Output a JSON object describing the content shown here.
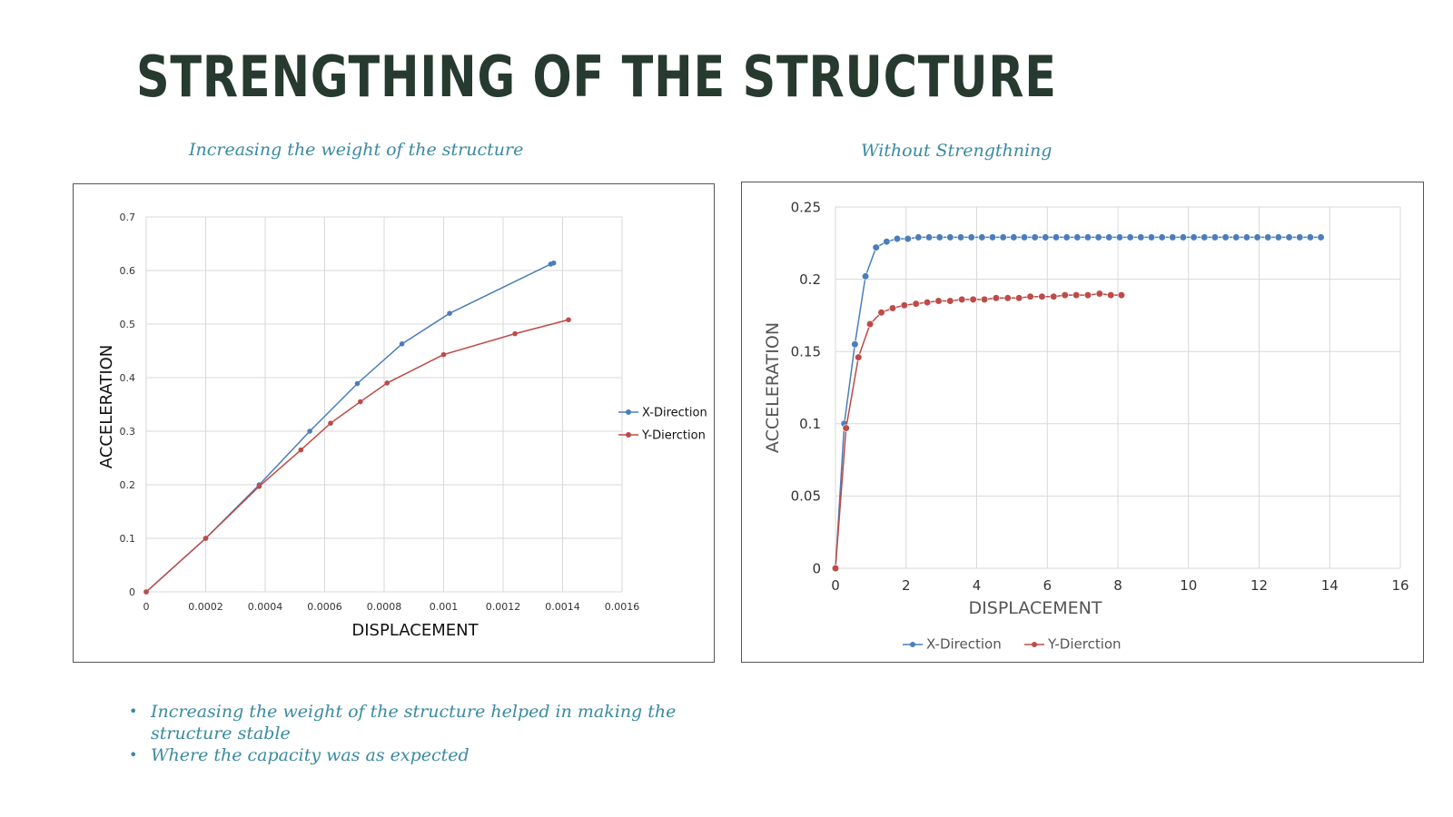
{
  "title": "STRENGTHING OF THE STRUCTURE",
  "captions": {
    "left": "Increasing the weight of the structure",
    "right": "Without Strengthning"
  },
  "bullets": [
    "Increasing the weight of the structure  helped in making the structure stable",
    "Where the capacity was as expected"
  ],
  "chart_data": [
    {
      "type": "line",
      "xlabel": "DISPLACEMENT",
      "ylabel": "ACCELERATION",
      "xlim": [
        0,
        0.0016
      ],
      "ylim": [
        0,
        0.7
      ],
      "x_ticks": [
        "0",
        "0.0002",
        "0.0004",
        "0.0006",
        "0.0008",
        "0.001",
        "0.0012",
        "0.0014",
        "0.0016"
      ],
      "y_ticks": [
        "0",
        "0.1",
        "0.2",
        "0.3",
        "0.4",
        "0.5",
        "0.6",
        "0.7"
      ],
      "grid": true,
      "legend": "right",
      "series": [
        {
          "name": "X-Direction",
          "color": "#4a7ebb",
          "points": [
            [
              0,
              0
            ],
            [
              0.0002,
              0.1
            ],
            [
              0.00038,
              0.2
            ],
            [
              0.00055,
              0.3
            ],
            [
              0.00071,
              0.389
            ],
            [
              0.00086,
              0.463
            ],
            [
              0.00102,
              0.52
            ],
            [
              0.00136,
              0.612
            ],
            [
              0.00137,
              0.614
            ]
          ]
        },
        {
          "name": "Y-Dierction",
          "color": "#be4b48",
          "points": [
            [
              0,
              0
            ],
            [
              0.0002,
              0.1
            ],
            [
              0.00038,
              0.197
            ],
            [
              0.00052,
              0.265
            ],
            [
              0.00062,
              0.315
            ],
            [
              0.00072,
              0.355
            ],
            [
              0.00081,
              0.39
            ],
            [
              0.001,
              0.443
            ],
            [
              0.00124,
              0.482
            ],
            [
              0.00142,
              0.508
            ]
          ]
        }
      ]
    },
    {
      "type": "line",
      "xlabel": "DISPLACEMENT",
      "ylabel": "ACCELERATION",
      "xlim": [
        0,
        16
      ],
      "ylim": [
        0,
        0.25
      ],
      "x_ticks": [
        "0",
        "2",
        "4",
        "6",
        "8",
        "10",
        "12",
        "14",
        "16"
      ],
      "y_ticks": [
        "0",
        "0.05",
        "0.1",
        "0.15",
        "0.2",
        "0.25"
      ],
      "grid": true,
      "legend": "bottom",
      "series": [
        {
          "name": "X-Direction",
          "color": "#4a7ebb",
          "points": [
            [
              0,
              0
            ],
            [
              0.25,
              0.1
            ],
            [
              0.55,
              0.155
            ],
            [
              0.85,
              0.202
            ],
            [
              1.15,
              0.222
            ],
            [
              1.45,
              0.226
            ],
            [
              1.75,
              0.228
            ],
            [
              2.05,
              0.228
            ],
            [
              2.35,
              0.229
            ],
            [
              2.65,
              0.229
            ],
            [
              2.95,
              0.229
            ],
            [
              3.25,
              0.229
            ],
            [
              3.55,
              0.229
            ],
            [
              3.85,
              0.229
            ],
            [
              4.15,
              0.229
            ],
            [
              4.45,
              0.229
            ],
            [
              4.75,
              0.229
            ],
            [
              5.05,
              0.229
            ],
            [
              5.35,
              0.229
            ],
            [
              5.65,
              0.229
            ],
            [
              5.95,
              0.229
            ],
            [
              6.25,
              0.229
            ],
            [
              6.55,
              0.229
            ],
            [
              6.85,
              0.229
            ],
            [
              7.15,
              0.229
            ],
            [
              7.45,
              0.229
            ],
            [
              7.75,
              0.229
            ],
            [
              8.05,
              0.229
            ],
            [
              8.35,
              0.229
            ],
            [
              8.65,
              0.229
            ],
            [
              8.95,
              0.229
            ],
            [
              9.25,
              0.229
            ],
            [
              9.55,
              0.229
            ],
            [
              9.85,
              0.229
            ],
            [
              10.15,
              0.229
            ],
            [
              10.45,
              0.229
            ],
            [
              10.75,
              0.229
            ],
            [
              11.05,
              0.229
            ],
            [
              11.35,
              0.229
            ],
            [
              11.65,
              0.229
            ],
            [
              11.95,
              0.229
            ],
            [
              12.25,
              0.229
            ],
            [
              12.55,
              0.229
            ],
            [
              12.85,
              0.229
            ],
            [
              13.15,
              0.229
            ],
            [
              13.45,
              0.229
            ],
            [
              13.75,
              0.229
            ]
          ]
        },
        {
          "name": "Y-Dierction",
          "color": "#be4b48",
          "points": [
            [
              0,
              0
            ],
            [
              0.3,
              0.097
            ],
            [
              0.65,
              0.146
            ],
            [
              0.98,
              0.169
            ],
            [
              1.3,
              0.177
            ],
            [
              1.62,
              0.18
            ],
            [
              1.95,
              0.182
            ],
            [
              2.28,
              0.183
            ],
            [
              2.6,
              0.184
            ],
            [
              2.92,
              0.185
            ],
            [
              3.25,
              0.185
            ],
            [
              3.58,
              0.186
            ],
            [
              3.9,
              0.186
            ],
            [
              4.22,
              0.186
            ],
            [
              4.55,
              0.187
            ],
            [
              4.88,
              0.187
            ],
            [
              5.2,
              0.187
            ],
            [
              5.52,
              0.188
            ],
            [
              5.85,
              0.188
            ],
            [
              6.18,
              0.188
            ],
            [
              6.5,
              0.189
            ],
            [
              6.82,
              0.189
            ],
            [
              7.15,
              0.189
            ],
            [
              7.48,
              0.19
            ],
            [
              7.8,
              0.189
            ],
            [
              8.1,
              0.189
            ]
          ]
        }
      ]
    }
  ]
}
